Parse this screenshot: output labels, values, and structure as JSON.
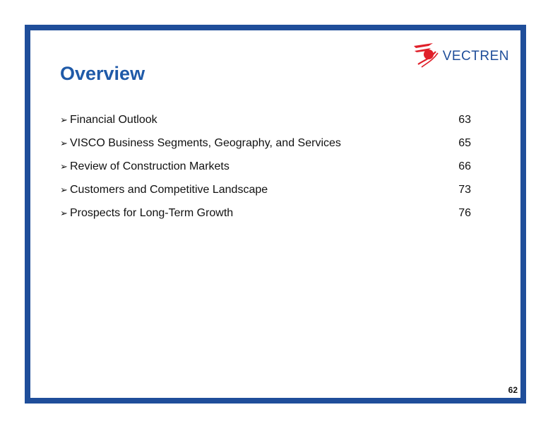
{
  "logo": {
    "brand": "VECTREN",
    "mark_color": "#e0202a",
    "text_color": "#1f4e9a"
  },
  "slide": {
    "title": "Overview",
    "border_color": "#1f4e9a",
    "page_number": "62"
  },
  "toc": [
    {
      "bullet": "➢",
      "label": "Financial Outlook",
      "page": "63"
    },
    {
      "bullet": "➢",
      "label": "VISCO Business Segments, Geography, and Services",
      "page": "65"
    },
    {
      "bullet": "➢",
      "label": "Review of Construction Markets",
      "page": "66"
    },
    {
      "bullet": "➢",
      "label": "Customers and Competitive Landscape",
      "page": "73"
    },
    {
      "bullet": "➢",
      "label": "Prospects for Long-Term Growth",
      "page": "76"
    }
  ]
}
